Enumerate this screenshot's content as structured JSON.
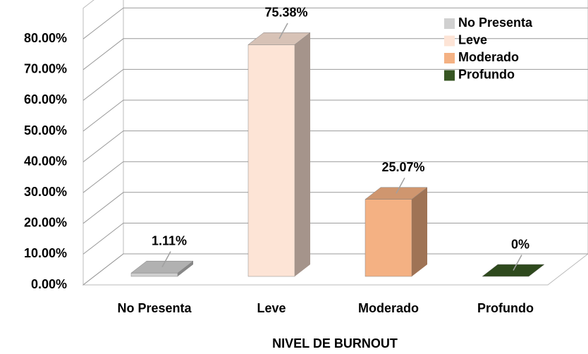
{
  "chart_data": {
    "type": "bar3d",
    "x_label": "NIVEL DE BURNOUT",
    "categories": [
      "No Presenta",
      "Leve",
      "Moderado",
      "Profundo"
    ],
    "values": [
      1.11,
      75.38,
      25.07,
      0
    ],
    "value_labels": [
      "1.11%",
      "75.38%",
      "25.07%",
      "0%"
    ],
    "colors": [
      "#d0d0d0",
      "#fde4d6",
      "#f4b183",
      "#375623"
    ],
    "ylim": [
      0,
      90
    ],
    "yticks": [
      {
        "value": 0,
        "label": "0.00%"
      },
      {
        "value": 10,
        "label": "10.00%"
      },
      {
        "value": 20,
        "label": "20.00%"
      },
      {
        "value": 30,
        "label": "30.00%"
      },
      {
        "value": 40,
        "label": "40.00%"
      },
      {
        "value": 50,
        "label": "50.00%"
      },
      {
        "value": 60,
        "label": "60.00%"
      },
      {
        "value": 70,
        "label": "70.00%"
      },
      {
        "value": 80,
        "label": "80.00%"
      }
    ],
    "grid": true,
    "legend": "top-right"
  }
}
